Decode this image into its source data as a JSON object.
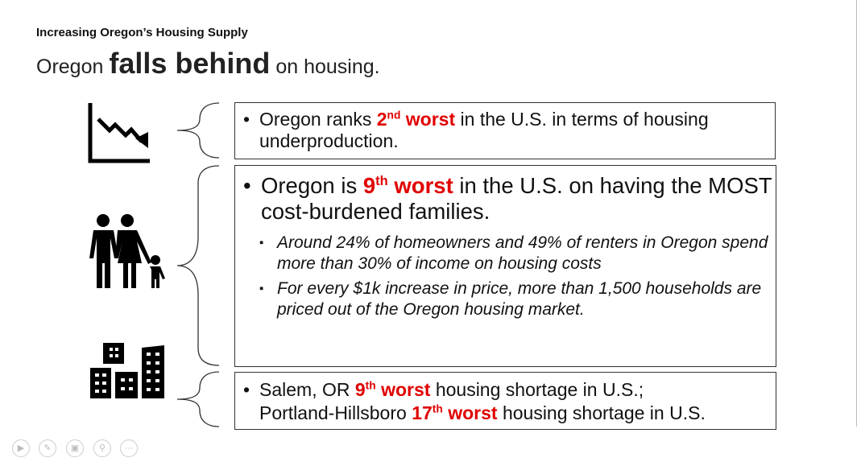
{
  "header": {
    "kicker": "Increasing Oregon’s Housing Supply",
    "title_pre": "Oregon ",
    "title_bold": "falls behind",
    "title_post": " on housing."
  },
  "box1": {
    "t1": "Oregon ranks ",
    "rank": "2",
    "sup": "nd",
    "worst": " worst",
    "t2": " in the U.S. in terms of housing underproduction."
  },
  "box2": {
    "t1": "Oregon is ",
    "rank": "9",
    "sup": "th",
    "worst": " worst",
    "t2": " in the U.S. on having the MOST cost-burdened families.",
    "sub": [
      "Around 24% of homeowners and 49% of renters in Oregon spend more than 30% of income on housing costs",
      "For every $1k increase in price, more than 1,500 households are priced out of the Oregon housing market."
    ]
  },
  "box3": {
    "a1": "Salem, OR ",
    "arank": "9",
    "asup": "th",
    "aworst": " worst",
    "a2": " housing shortage in U.S.;",
    "b1": "Portland-Hillsboro ",
    "brank": "17",
    "bsup": "th",
    "bworst": " worst",
    "b2": " housing shortage in U.S."
  },
  "icons": [
    "declining-chart-icon",
    "family-icon",
    "buildings-icon"
  ],
  "controls": [
    "play-icon",
    "pen-icon",
    "slides-icon",
    "zoom-icon",
    "more-icon"
  ],
  "colors": {
    "accent": "#e00000"
  }
}
